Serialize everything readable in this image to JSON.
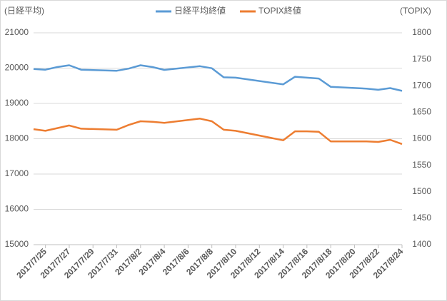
{
  "chart_data": {
    "type": "line",
    "y_label": "(日経平均)",
    "y2_label": "(TOPIX)",
    "x": [
      "2017/7/24",
      "2017/7/25",
      "2017/7/26",
      "2017/7/27",
      "2017/7/28",
      "2017/7/31",
      "2017/8/1",
      "2017/8/2",
      "2017/8/3",
      "2017/8/4",
      "2017/8/7",
      "2017/8/8",
      "2017/8/9",
      "2017/8/10",
      "2017/8/14",
      "2017/8/15",
      "2017/8/16",
      "2017/8/17",
      "2017/8/18",
      "2017/8/21",
      "2017/8/22",
      "2017/8/23",
      "2017/8/24"
    ],
    "xlim": [
      "2017/7/24",
      "2017/8/24"
    ],
    "xticks": [
      "2017/7/25",
      "2017/7/27",
      "2017/7/29",
      "2017/7/31",
      "2017/8/2",
      "2017/8/4",
      "2017/8/6",
      "2017/8/8",
      "2017/8/10",
      "2017/8/12",
      "2017/8/14",
      "2017/8/16",
      "2017/8/18",
      "2017/8/20",
      "2017/8/22",
      "2017/8/24"
    ],
    "series": [
      {
        "name": "日経平均終値",
        "color": "#5b9bd5",
        "values": [
          19975,
          19955,
          20030,
          20080,
          19955,
          19925,
          19985,
          20080,
          20030,
          19950,
          20055,
          19995,
          19740,
          19730,
          19540,
          19755,
          19730,
          19705,
          19470,
          19420,
          19385,
          19435,
          19355
        ]
      },
      {
        "name": "TOPIX終値",
        "color": "#ed7d31",
        "axis": "y2",
        "values": [
          1618,
          1615,
          1620,
          1625,
          1619,
          1617,
          1626,
          1633,
          1632,
          1630,
          1638,
          1633,
          1617,
          1615,
          1597,
          1614,
          1614,
          1613,
          1595,
          1595,
          1594,
          1598,
          1590
        ]
      }
    ],
    "ylim": [
      15000,
      21000
    ],
    "yticks": [
      15000,
      16000,
      17000,
      18000,
      19000,
      20000,
      21000
    ],
    "y2lim": [
      1400,
      1800
    ],
    "y2ticks": [
      1400,
      1450,
      1500,
      1550,
      1600,
      1650,
      1700,
      1750,
      1800
    ],
    "grid": true
  }
}
